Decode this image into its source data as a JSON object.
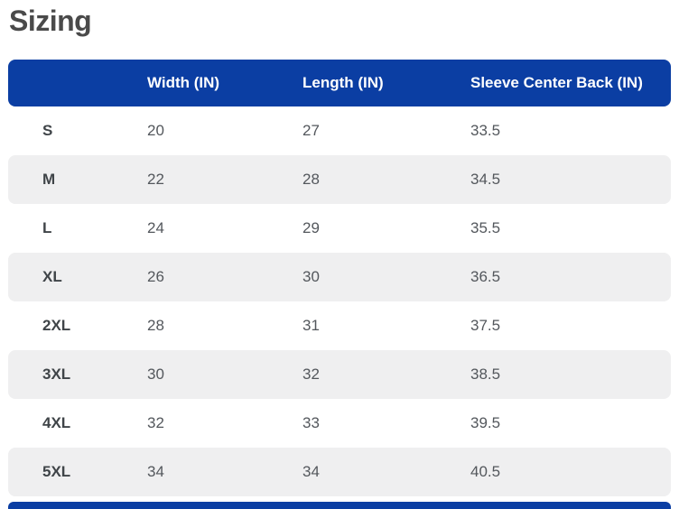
{
  "page": {
    "title": "Sizing"
  },
  "sizing_table": {
    "headers": {
      "size": "",
      "width": "Width (IN)",
      "length": "Length (IN)",
      "sleeve": "Sleeve Center Back (IN)"
    },
    "rows": [
      {
        "size": "S",
        "width": "20",
        "length": "27",
        "sleeve": "33.5"
      },
      {
        "size": "M",
        "width": "22",
        "length": "28",
        "sleeve": "34.5"
      },
      {
        "size": "L",
        "width": "24",
        "length": "29",
        "sleeve": "35.5"
      },
      {
        "size": "XL",
        "width": "26",
        "length": "30",
        "sleeve": "36.5"
      },
      {
        "size": "2XL",
        "width": "28",
        "length": "31",
        "sleeve": "37.5"
      },
      {
        "size": "3XL",
        "width": "30",
        "length": "32",
        "sleeve": "38.5"
      },
      {
        "size": "4XL",
        "width": "32",
        "length": "33",
        "sleeve": "39.5"
      },
      {
        "size": "5XL",
        "width": "34",
        "length": "34",
        "sleeve": "40.5"
      }
    ],
    "colors": {
      "header_bg": "#0b3ea3",
      "header_text": "#ffffff",
      "stripe_bg": "#efeff0",
      "label_text": "#3f4448",
      "value_text": "#53575c",
      "title_text": "#4a4a4a"
    }
  }
}
